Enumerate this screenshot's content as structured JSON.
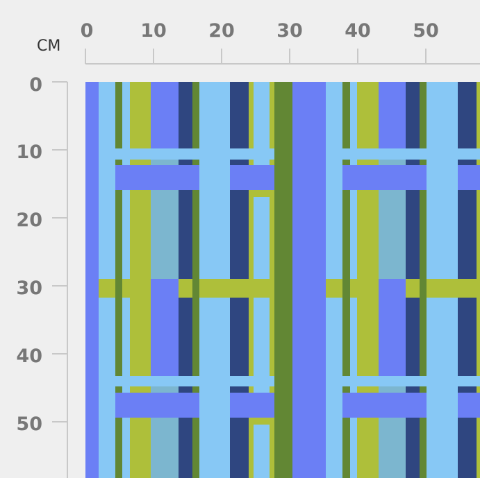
{
  "ruler": {
    "unit": "CM",
    "x_ticks": [
      "0",
      "10",
      "20",
      "30",
      "40",
      "50"
    ],
    "y_ticks": [
      "0",
      "10",
      "20",
      "30",
      "40",
      "50"
    ]
  },
  "palette": {
    "periwinkle": "#6b7ff5",
    "light_blue": "#87c8f5",
    "olive": "#aebf3a",
    "navy": "#2f4680",
    "forest_green": "#628734",
    "steel": "#7cb6cf",
    "background": "#efefef",
    "ruler_line": "#c8c8c8",
    "tick_text": "#777777"
  },
  "pattern": {
    "name": "plaid-swatch",
    "repeat_cm": 33.5
  }
}
